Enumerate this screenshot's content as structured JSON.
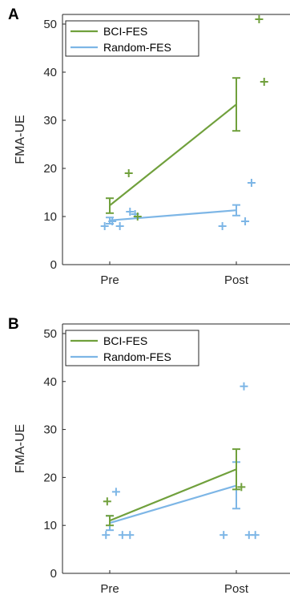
{
  "colors": {
    "bci": "#70a03c",
    "random": "#7db6e6",
    "axis": "#262626"
  },
  "chart_data": [
    {
      "type": "line",
      "panel": "A",
      "categories": [
        "Pre",
        "Post"
      ],
      "ylabel": "FMA-UE",
      "ylim": [
        0,
        52
      ],
      "yticks": [
        0,
        10,
        20,
        30,
        40,
        50
      ],
      "legend_position": "top-left",
      "series": [
        {
          "name": "BCI-FES",
          "color": "bci",
          "mean": [
            12.3,
            33.3
          ],
          "err_low": [
            10.7,
            27.8
          ],
          "err_high": [
            13.8,
            38.8
          ],
          "points": [
            [
              1.15,
              19
            ],
            [
              1.22,
              10
            ],
            [
              2.18,
              51
            ],
            [
              2.22,
              38
            ]
          ]
        },
        {
          "name": "Random-FES",
          "color": "random",
          "mean": [
            9.2,
            11.3
          ],
          "err_low": [
            8.5,
            10.2
          ],
          "err_high": [
            9.8,
            12.4
          ],
          "points": [
            [
              0.96,
              8
            ],
            [
              1.02,
              9
            ],
            [
              1.08,
              8
            ],
            [
              1.16,
              11
            ],
            [
              1.2,
              10.5
            ],
            [
              1.89,
              8
            ],
            [
              2.07,
              9
            ],
            [
              2.12,
              17
            ]
          ]
        }
      ]
    },
    {
      "type": "line",
      "panel": "B",
      "categories": [
        "Pre",
        "Post"
      ],
      "ylabel": "FMA-UE",
      "ylim": [
        0,
        52
      ],
      "yticks": [
        0,
        10,
        20,
        30,
        40,
        50
      ],
      "legend_position": "top-left",
      "series": [
        {
          "name": "BCI-FES",
          "color": "bci",
          "mean": [
            11.0,
            21.7
          ],
          "err_low": [
            10.0,
            17.5
          ],
          "err_high": [
            12.0,
            25.9
          ],
          "points": [
            [
              0.98,
              15
            ],
            [
              2.04,
              18
            ]
          ]
        },
        {
          "name": "Random-FES",
          "color": "random",
          "mean": [
            10.5,
            18.3
          ],
          "err_low": [
            9.0,
            13.5
          ],
          "err_high": [
            12.0,
            23.2
          ],
          "points": [
            [
              0.97,
              8
            ],
            [
              1.05,
              17
            ],
            [
              1.1,
              8
            ],
            [
              1.16,
              8
            ],
            [
              1.9,
              8
            ],
            [
              2.06,
              39
            ],
            [
              2.1,
              8
            ],
            [
              2.15,
              8
            ]
          ]
        }
      ]
    }
  ]
}
